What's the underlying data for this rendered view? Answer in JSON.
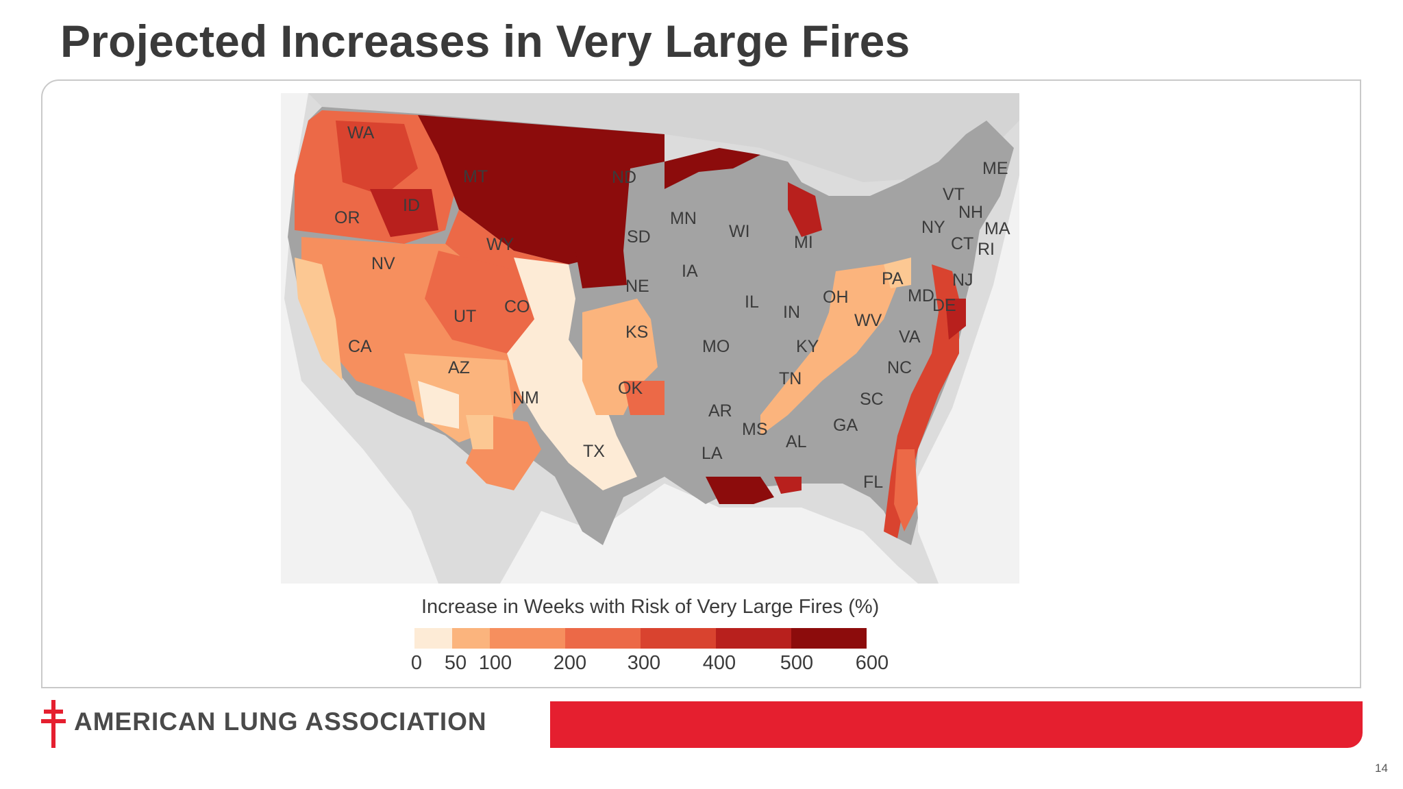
{
  "slide": {
    "title": "Projected Increases in Very Large Fires",
    "page_number": "14"
  },
  "map": {
    "legend_title": "Increase in Weeks with Risk of Very Large Fires (%)",
    "legend_ticks": [
      "0",
      "50",
      "100",
      "200",
      "300",
      "400",
      "500",
      "600"
    ],
    "legend_colors": [
      "#fdebd6",
      "#fcc893",
      "#fbb47d",
      "#f68f5e",
      "#ec6947",
      "#d9432f",
      "#b8201d",
      "#8c0c0c"
    ],
    "other_colors": {
      "no_data_land": "#a3a3a3",
      "background": "#dcdcdc",
      "water": "#f2f2f2"
    },
    "states": [
      {
        "abbr": "WA",
        "value": 400
      },
      {
        "abbr": "OR",
        "value": 300
      },
      {
        "abbr": "ID",
        "value": 400
      },
      {
        "abbr": "MT",
        "value": 600
      },
      {
        "abbr": "ND",
        "value": null
      },
      {
        "abbr": "ME",
        "value": null
      },
      {
        "abbr": "VT",
        "value": null
      },
      {
        "abbr": "NH",
        "value": null
      },
      {
        "abbr": "MA",
        "value": null
      },
      {
        "abbr": "NY",
        "value": null
      },
      {
        "abbr": "CT",
        "value": null
      },
      {
        "abbr": "RI",
        "value": null
      },
      {
        "abbr": "MN",
        "value": 600
      },
      {
        "abbr": "WI",
        "value": null
      },
      {
        "abbr": "MI",
        "value": 600
      },
      {
        "abbr": "SD",
        "value": 600
      },
      {
        "abbr": "WY",
        "value": 300
      },
      {
        "abbr": "NV",
        "value": 200
      },
      {
        "abbr": "IA",
        "value": null
      },
      {
        "abbr": "NE",
        "value": 50
      },
      {
        "abbr": "PA",
        "value": 100
      },
      {
        "abbr": "NJ",
        "value": 500
      },
      {
        "abbr": "MD",
        "value": null
      },
      {
        "abbr": "DE",
        "value": 500
      },
      {
        "abbr": "OH",
        "value": null
      },
      {
        "abbr": "IL",
        "value": null
      },
      {
        "abbr": "IN",
        "value": null
      },
      {
        "abbr": "UT",
        "value": 300
      },
      {
        "abbr": "CO",
        "value": 300
      },
      {
        "abbr": "WV",
        "value": 100
      },
      {
        "abbr": "KS",
        "value": 50
      },
      {
        "abbr": "MO",
        "value": 100
      },
      {
        "abbr": "VA",
        "value": null
      },
      {
        "abbr": "KY",
        "value": 100
      },
      {
        "abbr": "CA",
        "value": 50
      },
      {
        "abbr": "AZ",
        "value": 200
      },
      {
        "abbr": "NC",
        "value": 500
      },
      {
        "abbr": "TN",
        "value": 100
      },
      {
        "abbr": "OK",
        "value": 0
      },
      {
        "abbr": "NM",
        "value": 100
      },
      {
        "abbr": "AR",
        "value": 200
      },
      {
        "abbr": "SC",
        "value": 400
      },
      {
        "abbr": "MS",
        "value": null
      },
      {
        "abbr": "GA",
        "value": 400
      },
      {
        "abbr": "AL",
        "value": null
      },
      {
        "abbr": "TX",
        "value": 0
      },
      {
        "abbr": "LA",
        "value": 600
      },
      {
        "abbr": "FL",
        "value": 400
      }
    ]
  },
  "footer": {
    "organization": "AMERICAN LUNG ASSOCIATION",
    "brand_color": "#e51f2f"
  }
}
